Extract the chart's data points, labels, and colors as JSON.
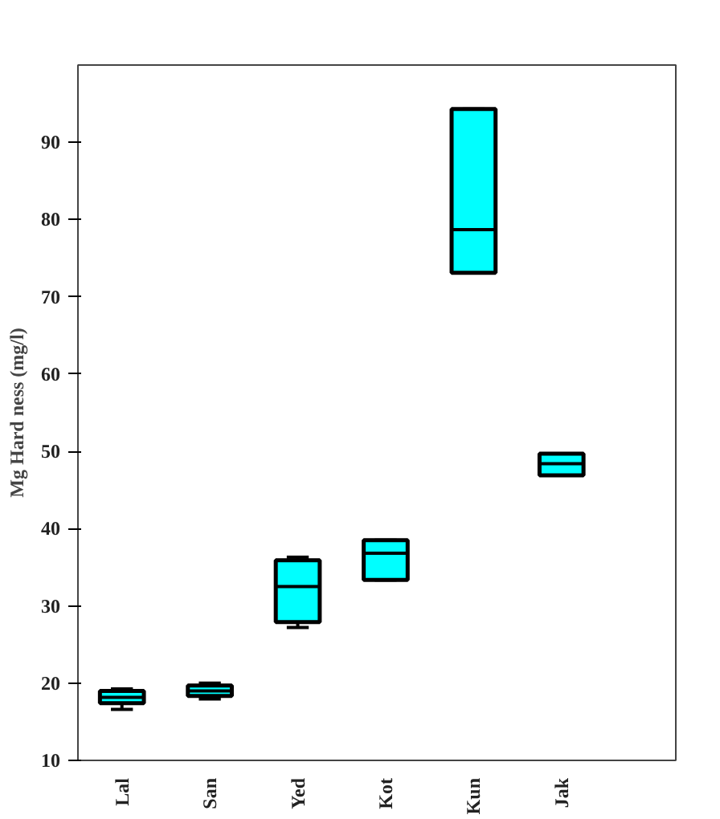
{
  "chart_data": {
    "type": "box",
    "ylabel": "Mg Hard ness (mg/l)",
    "categories": [
      "Lal",
      "San",
      "Yed",
      "Kot",
      "Kun",
      "Jak"
    ],
    "color": "#00ffff",
    "ylim": [
      10,
      100
    ],
    "yticks": [
      10,
      20,
      30,
      40,
      50,
      60,
      70,
      80,
      90
    ],
    "grid": false,
    "boxes": [
      {
        "low": 16.6,
        "q1": 17.4,
        "median": 18.15,
        "q3": 19.0,
        "high": 19.25
      },
      {
        "low": 17.95,
        "q1": 18.35,
        "median": 19.0,
        "q3": 19.7,
        "high": 20.0
      },
      {
        "low": 27.2,
        "q1": 27.9,
        "median": 32.5,
        "q3": 35.9,
        "high": 36.3
      },
      {
        "low": 33.35,
        "q1": 33.35,
        "median": 36.8,
        "q3": 38.5,
        "high": 38.5
      },
      {
        "low": 73.1,
        "q1": 73.1,
        "median": 78.7,
        "q3": 94.3,
        "high": 94.3
      },
      {
        "low": 46.9,
        "q1": 46.9,
        "median": 48.4,
        "q3": 49.7,
        "high": 49.7
      }
    ]
  }
}
